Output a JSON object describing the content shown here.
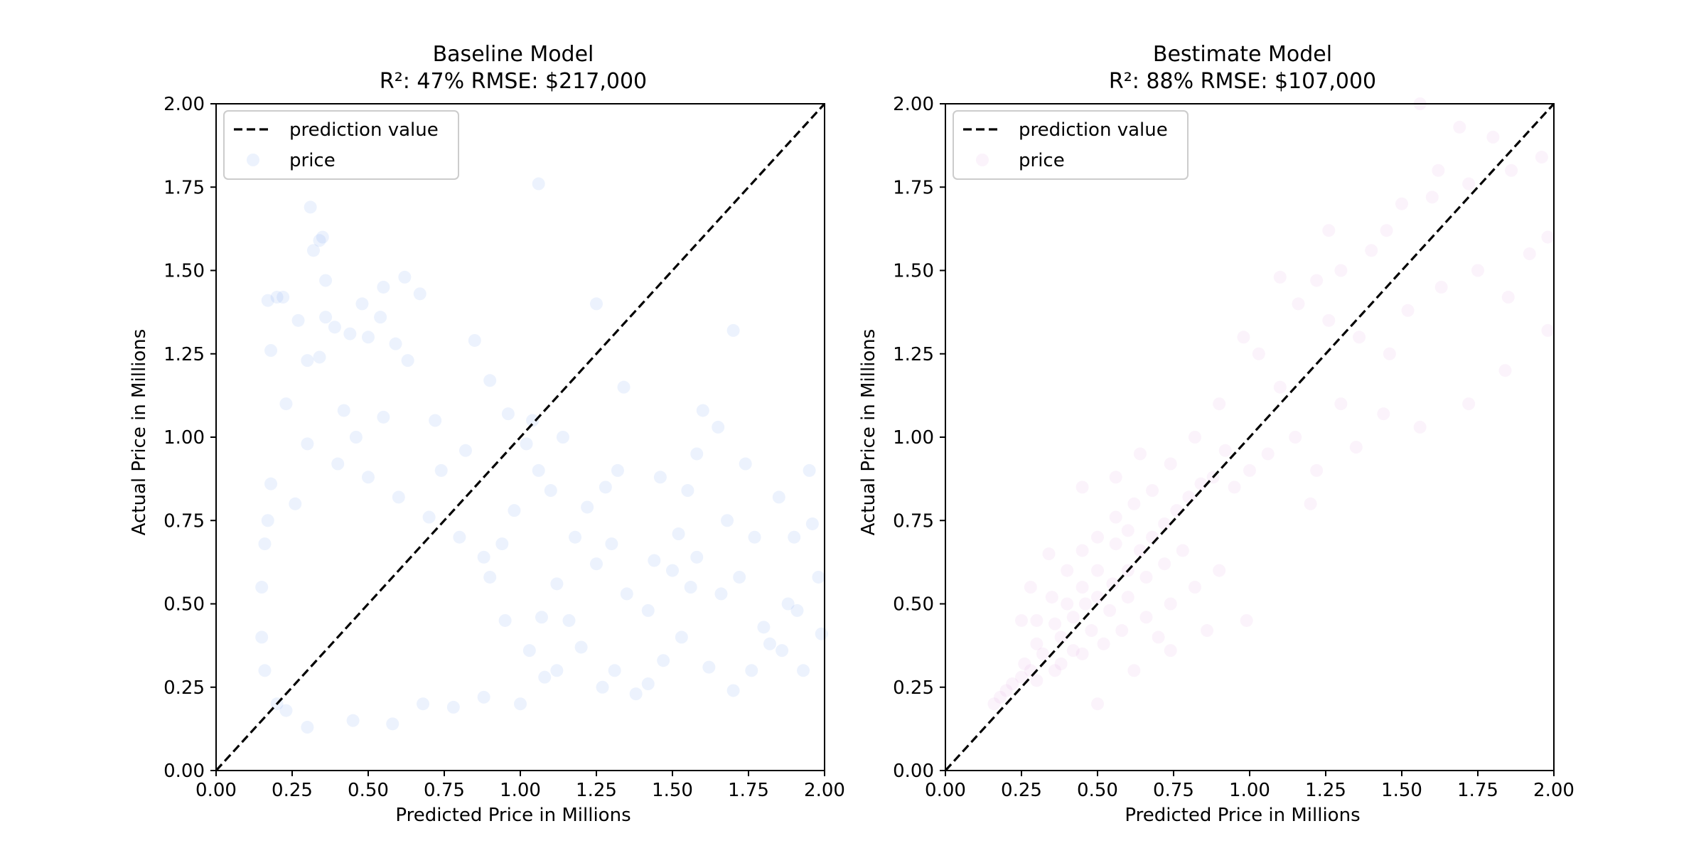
{
  "chart_data": [
    {
      "type": "scatter",
      "title": "Baseline Model",
      "subtitle": "R²: 47%  RMSE: $217,000",
      "xlabel": "Predicted Price in Millions",
      "ylabel": "Actual Price in Millions",
      "xlim": [
        0,
        2
      ],
      "ylim": [
        0,
        2
      ],
      "xticks": [
        "0.00",
        "0.25",
        "0.50",
        "0.75",
        "1.00",
        "1.25",
        "1.50",
        "1.75",
        "2.00"
      ],
      "yticks": [
        "0.00",
        "0.25",
        "0.50",
        "0.75",
        "1.00",
        "1.25",
        "1.50",
        "1.75",
        "2.00"
      ],
      "grid": false,
      "legend_position": "top-left",
      "reference_line": {
        "name": "prediction value",
        "style": "dashed",
        "color": "#000000",
        "from": [
          0,
          0
        ],
        "to": [
          2,
          2
        ]
      },
      "series": [
        {
          "name": "price",
          "color": "#6495ED",
          "opacity": 0.12,
          "points": [
            [
              0.31,
              1.69
            ],
            [
              0.35,
              1.6
            ],
            [
              0.34,
              1.59
            ],
            [
              0.32,
              1.56
            ],
            [
              0.36,
              1.47
            ],
            [
              1.06,
              1.76
            ],
            [
              0.2,
              1.42
            ],
            [
              0.22,
              1.42
            ],
            [
              0.17,
              1.41
            ],
            [
              0.48,
              1.4
            ],
            [
              0.62,
              1.48
            ],
            [
              0.55,
              1.45
            ],
            [
              0.67,
              1.43
            ],
            [
              0.27,
              1.35
            ],
            [
              0.36,
              1.36
            ],
            [
              0.39,
              1.33
            ],
            [
              0.44,
              1.31
            ],
            [
              0.5,
              1.3
            ],
            [
              0.54,
              1.36
            ],
            [
              0.59,
              1.28
            ],
            [
              0.85,
              1.29
            ],
            [
              0.18,
              1.26
            ],
            [
              0.3,
              1.23
            ],
            [
              0.34,
              1.24
            ],
            [
              0.63,
              1.23
            ],
            [
              1.25,
              1.4
            ],
            [
              1.7,
              1.32
            ],
            [
              1.34,
              1.15
            ],
            [
              0.9,
              1.17
            ],
            [
              0.23,
              1.1
            ],
            [
              0.42,
              1.08
            ],
            [
              0.55,
              1.06
            ],
            [
              0.72,
              1.05
            ],
            [
              0.96,
              1.07
            ],
            [
              1.04,
              1.05
            ],
            [
              1.14,
              1.0
            ],
            [
              1.32,
              0.9
            ],
            [
              1.46,
              0.88
            ],
            [
              1.58,
              0.95
            ],
            [
              1.74,
              0.92
            ],
            [
              1.85,
              0.82
            ],
            [
              1.95,
              0.9
            ],
            [
              1.6,
              1.08
            ],
            [
              1.65,
              1.03
            ],
            [
              1.55,
              0.84
            ],
            [
              1.68,
              0.75
            ],
            [
              1.77,
              0.7
            ],
            [
              1.9,
              0.7
            ],
            [
              1.96,
              0.74
            ],
            [
              1.98,
              0.58
            ],
            [
              1.88,
              0.5
            ],
            [
              1.91,
              0.48
            ],
            [
              1.82,
              0.38
            ],
            [
              1.76,
              0.3
            ],
            [
              1.7,
              0.24
            ],
            [
              1.62,
              0.31
            ],
            [
              1.53,
              0.4
            ],
            [
              1.47,
              0.33
            ],
            [
              1.42,
              0.26
            ],
            [
              1.38,
              0.23
            ],
            [
              1.31,
              0.3
            ],
            [
              1.27,
              0.25
            ],
            [
              1.2,
              0.37
            ],
            [
              1.16,
              0.45
            ],
            [
              1.12,
              0.56
            ],
            [
              1.25,
              0.62
            ],
            [
              1.3,
              0.68
            ],
            [
              1.35,
              0.53
            ],
            [
              1.42,
              0.48
            ],
            [
              1.5,
              0.6
            ],
            [
              1.58,
              0.64
            ],
            [
              1.66,
              0.53
            ],
            [
              1.72,
              0.58
            ],
            [
              1.99,
              0.41
            ],
            [
              1.93,
              0.3
            ],
            [
              1.86,
              0.36
            ],
            [
              1.8,
              0.43
            ],
            [
              1.56,
              0.55
            ],
            [
              1.52,
              0.71
            ],
            [
              1.44,
              0.63
            ],
            [
              1.28,
              0.85
            ],
            [
              1.22,
              0.79
            ],
            [
              1.18,
              0.7
            ],
            [
              1.1,
              0.84
            ],
            [
              1.06,
              0.9
            ],
            [
              1.02,
              0.98
            ],
            [
              0.98,
              0.78
            ],
            [
              0.94,
              0.68
            ],
            [
              0.9,
              0.58
            ],
            [
              0.95,
              0.45
            ],
            [
              0.18,
              0.86
            ],
            [
              0.26,
              0.8
            ],
            [
              0.4,
              0.92
            ],
            [
              0.5,
              0.88
            ],
            [
              0.6,
              0.82
            ],
            [
              0.7,
              0.76
            ],
            [
              0.8,
              0.7
            ],
            [
              0.88,
              0.64
            ],
            [
              0.46,
              1.0
            ],
            [
              0.3,
              0.98
            ],
            [
              0.2,
              0.2
            ],
            [
              0.23,
              0.18
            ],
            [
              0.3,
              0.13
            ],
            [
              0.45,
              0.15
            ],
            [
              0.58,
              0.14
            ],
            [
              0.68,
              0.2
            ],
            [
              0.78,
              0.19
            ],
            [
              0.88,
              0.22
            ],
            [
              1.0,
              0.2
            ],
            [
              1.08,
              0.28
            ],
            [
              0.16,
              0.3
            ],
            [
              0.15,
              0.4
            ],
            [
              0.15,
              0.55
            ],
            [
              0.16,
              0.68
            ],
            [
              0.17,
              0.75
            ],
            [
              1.12,
              0.3
            ],
            [
              1.03,
              0.36
            ],
            [
              1.07,
              0.46
            ],
            [
              0.82,
              0.96
            ],
            [
              0.74,
              0.9
            ]
          ]
        }
      ]
    },
    {
      "type": "scatter",
      "title": "Bestimate Model",
      "subtitle": "R²: 88%  RMSE: $107,000",
      "xlabel": "Predicted Price in Millions",
      "ylabel": "Actual Price in Millions",
      "xlim": [
        0,
        2
      ],
      "ylim": [
        0,
        2
      ],
      "xticks": [
        "0.00",
        "0.25",
        "0.50",
        "0.75",
        "1.00",
        "1.25",
        "1.50",
        "1.75",
        "2.00"
      ],
      "yticks": [
        "0.00",
        "0.25",
        "0.50",
        "0.75",
        "1.00",
        "1.25",
        "1.50",
        "1.75",
        "2.00"
      ],
      "grid": false,
      "legend_position": "top-left",
      "reference_line": {
        "name": "prediction value",
        "style": "dashed",
        "color": "#000000",
        "from": [
          0,
          0
        ],
        "to": [
          2,
          2
        ]
      },
      "series": [
        {
          "name": "price",
          "color": "#DDA0DD",
          "opacity": 0.12,
          "points": [
            [
              1.56,
              2.0
            ],
            [
              1.69,
              1.93
            ],
            [
              1.8,
              1.9
            ],
            [
              1.96,
              1.84
            ],
            [
              1.86,
              1.8
            ],
            [
              1.72,
              1.76
            ],
            [
              1.62,
              1.8
            ],
            [
              1.6,
              1.72
            ],
            [
              1.5,
              1.7
            ],
            [
              1.45,
              1.62
            ],
            [
              1.4,
              1.56
            ],
            [
              1.3,
              1.5
            ],
            [
              1.22,
              1.47
            ],
            [
              1.1,
              1.48
            ],
            [
              1.16,
              1.4
            ],
            [
              1.26,
              1.35
            ],
            [
              1.36,
              1.3
            ],
            [
              1.46,
              1.25
            ],
            [
              1.52,
              1.38
            ],
            [
              1.63,
              1.45
            ],
            [
              1.75,
              1.5
            ],
            [
              1.85,
              1.42
            ],
            [
              1.92,
              1.55
            ],
            [
              1.98,
              1.6
            ],
            [
              1.98,
              1.32
            ],
            [
              1.84,
              1.2
            ],
            [
              1.72,
              1.1
            ],
            [
              1.56,
              1.03
            ],
            [
              1.44,
              1.07
            ],
            [
              1.35,
              0.97
            ],
            [
              1.22,
              0.9
            ],
            [
              1.15,
              1.0
            ],
            [
              1.06,
              0.95
            ],
            [
              1.0,
              0.9
            ],
            [
              0.95,
              0.85
            ],
            [
              0.92,
              0.96
            ],
            [
              1.1,
              1.15
            ],
            [
              1.26,
              1.62
            ],
            [
              1.03,
              1.25
            ],
            [
              0.98,
              1.3
            ],
            [
              0.9,
              1.1
            ],
            [
              0.82,
              1.0
            ],
            [
              0.74,
              0.92
            ],
            [
              0.68,
              0.84
            ],
            [
              0.6,
              0.72
            ],
            [
              0.56,
              0.68
            ],
            [
              0.5,
              0.6
            ],
            [
              0.45,
              0.55
            ],
            [
              0.4,
              0.5
            ],
            [
              0.36,
              0.44
            ],
            [
              0.3,
              0.38
            ],
            [
              0.26,
              0.32
            ],
            [
              0.22,
              0.26
            ],
            [
              0.18,
              0.22
            ],
            [
              0.16,
              0.2
            ],
            [
              0.2,
              0.24
            ],
            [
              0.25,
              0.28
            ],
            [
              0.28,
              0.3
            ],
            [
              0.32,
              0.35
            ],
            [
              0.38,
              0.4
            ],
            [
              0.42,
              0.46
            ],
            [
              0.46,
              0.5
            ],
            [
              0.5,
              0.52
            ],
            [
              0.55,
              0.56
            ],
            [
              0.6,
              0.6
            ],
            [
              0.64,
              0.66
            ],
            [
              0.68,
              0.7
            ],
            [
              0.72,
              0.74
            ],
            [
              0.76,
              0.78
            ],
            [
              0.8,
              0.82
            ],
            [
              0.84,
              0.86
            ],
            [
              0.88,
              0.88
            ],
            [
              0.36,
              0.3
            ],
            [
              0.42,
              0.36
            ],
            [
              0.48,
              0.42
            ],
            [
              0.54,
              0.48
            ],
            [
              0.6,
              0.52
            ],
            [
              0.66,
              0.58
            ],
            [
              0.72,
              0.62
            ],
            [
              0.78,
              0.66
            ],
            [
              0.3,
              0.45
            ],
            [
              0.35,
              0.52
            ],
            [
              0.4,
              0.6
            ],
            [
              0.45,
              0.66
            ],
            [
              0.5,
              0.7
            ],
            [
              0.56,
              0.76
            ],
            [
              0.62,
              0.8
            ],
            [
              0.34,
              0.65
            ],
            [
              0.45,
              0.85
            ],
            [
              0.56,
              0.88
            ],
            [
              0.64,
              0.95
            ],
            [
              0.28,
              0.55
            ],
            [
              0.25,
              0.45
            ],
            [
              0.3,
              0.27
            ],
            [
              0.38,
              0.32
            ],
            [
              0.45,
              0.35
            ],
            [
              0.52,
              0.38
            ],
            [
              0.58,
              0.42
            ],
            [
              0.66,
              0.46
            ],
            [
              0.74,
              0.5
            ],
            [
              0.82,
              0.55
            ],
            [
              0.9,
              0.6
            ],
            [
              0.86,
              0.42
            ],
            [
              0.74,
              0.36
            ],
            [
              0.99,
              0.45
            ],
            [
              0.5,
              0.2
            ],
            [
              0.62,
              0.3
            ],
            [
              0.7,
              0.4
            ],
            [
              1.2,
              0.8
            ],
            [
              1.3,
              1.1
            ]
          ]
        }
      ]
    }
  ]
}
